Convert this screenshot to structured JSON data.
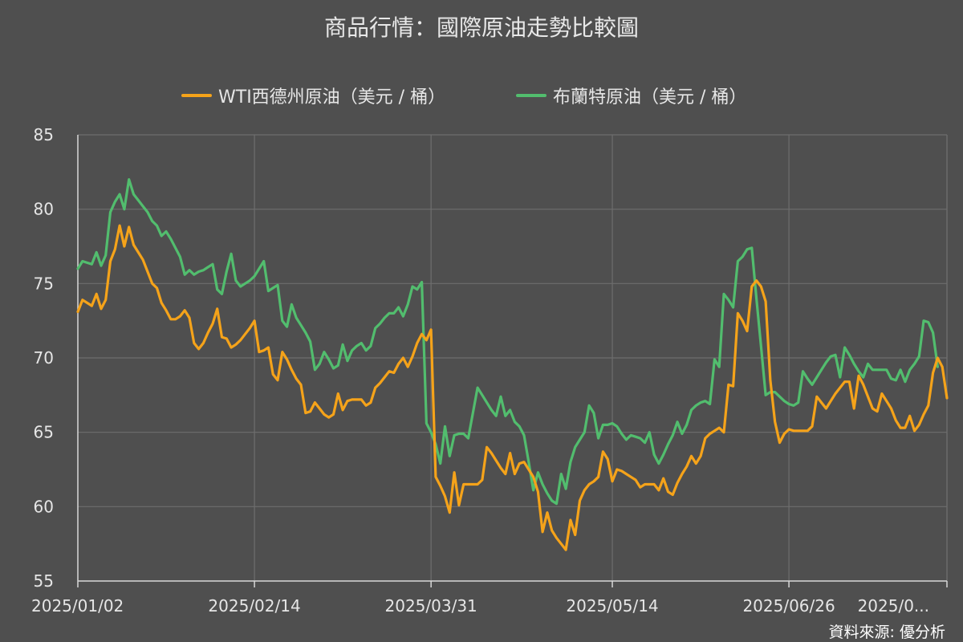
{
  "chart_data": {
    "type": "line",
    "title": "商品行情：國際原油走勢比較圖",
    "source": "資料來源: 優分析",
    "x_tick_labels": [
      "2025/01/02",
      "2025/02/14",
      "2025/03/31",
      "2025/05/14",
      "2025/06/26",
      "2025/0..."
    ],
    "ylim": [
      55,
      85
    ],
    "y_ticks": [
      55,
      60,
      65,
      70,
      75,
      80,
      85
    ],
    "grid": true,
    "legend_position": "top",
    "series": [
      {
        "name": "WTI西德州原油（美元 / 桶）",
        "color": "#f5a31a",
        "values": [
          73.1,
          73.9,
          73.7,
          73.5,
          74.3,
          73.3,
          73.9,
          76.5,
          77.3,
          78.9,
          77.5,
          78.8,
          77.6,
          77.1,
          76.6,
          75.8,
          75.0,
          74.7,
          73.7,
          73.2,
          72.6,
          72.6,
          72.8,
          73.2,
          72.7,
          71.0,
          70.6,
          71.0,
          71.7,
          72.3,
          73.3,
          71.4,
          71.3,
          70.7,
          70.9,
          71.2,
          71.6,
          72.0,
          72.5,
          70.4,
          70.5,
          70.7,
          68.9,
          68.5,
          70.4,
          69.9,
          69.2,
          68.6,
          68.2,
          66.3,
          66.4,
          67.0,
          66.6,
          66.2,
          66.0,
          66.2,
          67.6,
          66.5,
          67.1,
          67.2,
          67.2,
          67.2,
          66.8,
          67.0,
          68.0,
          68.3,
          68.7,
          69.1,
          69.0,
          69.6,
          70.0,
          69.4,
          70.1,
          71.0,
          71.6,
          71.2,
          71.9,
          62.0,
          61.4,
          60.7,
          59.6,
          62.3,
          60.1,
          61.5,
          61.5,
          61.5,
          61.5,
          61.8,
          64.0,
          63.6,
          63.1,
          62.6,
          62.2,
          63.6,
          62.2,
          62.9,
          63.0,
          62.5,
          62.0,
          61.0,
          58.3,
          59.6,
          58.4,
          57.9,
          57.5,
          57.1,
          59.1,
          58.1,
          60.4,
          61.1,
          61.5,
          61.7,
          62.0,
          63.7,
          63.2,
          61.7,
          62.5,
          62.4,
          62.2,
          62.0,
          61.8,
          61.3,
          61.5,
          61.5,
          61.5,
          61.1,
          61.9,
          61.0,
          60.8,
          61.6,
          62.2,
          62.7,
          63.4,
          62.9,
          63.4,
          64.6,
          64.9,
          65.1,
          65.3,
          65.0,
          68.2,
          68.1,
          73.0,
          72.5,
          71.8,
          74.8,
          75.2,
          74.8,
          73.8,
          68.5,
          65.7,
          64.3,
          64.9,
          65.2,
          65.1,
          65.1,
          65.1,
          65.1,
          65.4,
          67.4,
          67.0,
          66.6,
          67.1,
          67.6,
          68.0,
          68.4,
          68.4,
          66.6,
          68.8,
          68.2,
          67.4,
          66.6,
          66.4,
          67.6,
          67.1,
          66.6,
          65.8,
          65.3,
          65.3,
          66.1,
          65.1,
          65.5,
          66.2,
          66.8,
          69.0,
          70.0,
          69.4,
          67.3
        ]
      },
      {
        "name": "布蘭特原油（美元 / 桶）",
        "color": "#52bd6e",
        "values": [
          76.0,
          76.5,
          76.4,
          76.3,
          77.1,
          76.2,
          76.9,
          79.8,
          80.5,
          81.0,
          80.0,
          82.0,
          81.0,
          80.6,
          80.2,
          79.8,
          79.2,
          78.9,
          78.2,
          78.5,
          78.0,
          77.4,
          76.8,
          75.6,
          75.9,
          75.6,
          75.8,
          75.9,
          76.1,
          76.3,
          74.6,
          74.3,
          75.8,
          77.0,
          75.2,
          74.8,
          75.0,
          75.2,
          75.5,
          76.0,
          76.5,
          74.5,
          74.7,
          74.9,
          72.5,
          72.1,
          73.6,
          72.7,
          72.2,
          71.7,
          71.1,
          69.2,
          69.6,
          70.4,
          69.9,
          69.3,
          69.5,
          70.9,
          69.8,
          70.5,
          70.8,
          71.0,
          70.5,
          70.8,
          72.0,
          72.3,
          72.7,
          73.0,
          73.0,
          73.4,
          72.8,
          73.6,
          74.8,
          74.6,
          75.1,
          65.6,
          65.0,
          64.2,
          62.9,
          65.4,
          63.4,
          64.8,
          64.9,
          64.9,
          64.6,
          66.3,
          68.0,
          67.5,
          67.0,
          66.5,
          66.1,
          67.4,
          66.1,
          66.5,
          65.7,
          65.4,
          64.8,
          63.0,
          61.1,
          62.3,
          61.5,
          60.9,
          60.4,
          60.2,
          62.2,
          61.2,
          63.0,
          64.0,
          64.5,
          65.0,
          66.8,
          66.3,
          64.6,
          65.5,
          65.5,
          65.6,
          65.4,
          64.9,
          64.5,
          64.8,
          64.7,
          64.6,
          64.3,
          65.0,
          63.5,
          62.9,
          63.5,
          64.2,
          64.8,
          65.7,
          64.9,
          65.5,
          66.5,
          66.8,
          67.0,
          67.1,
          66.9,
          69.9,
          69.4,
          74.3,
          73.9,
          73.4,
          76.5,
          76.8,
          77.3,
          77.4,
          74.0,
          70.8,
          67.5,
          67.7,
          67.7,
          67.4,
          67.1,
          66.9,
          66.8,
          67.0,
          69.1,
          68.6,
          68.2,
          68.7,
          69.2,
          69.7,
          70.1,
          70.2,
          68.7,
          70.7,
          70.2,
          69.6,
          69.1,
          68.7,
          69.6,
          69.2,
          69.2,
          69.2,
          69.2,
          68.6,
          68.5,
          69.2,
          68.4,
          69.2,
          69.6,
          70.1,
          72.5,
          72.4,
          71.7,
          69.4
        ]
      }
    ]
  }
}
